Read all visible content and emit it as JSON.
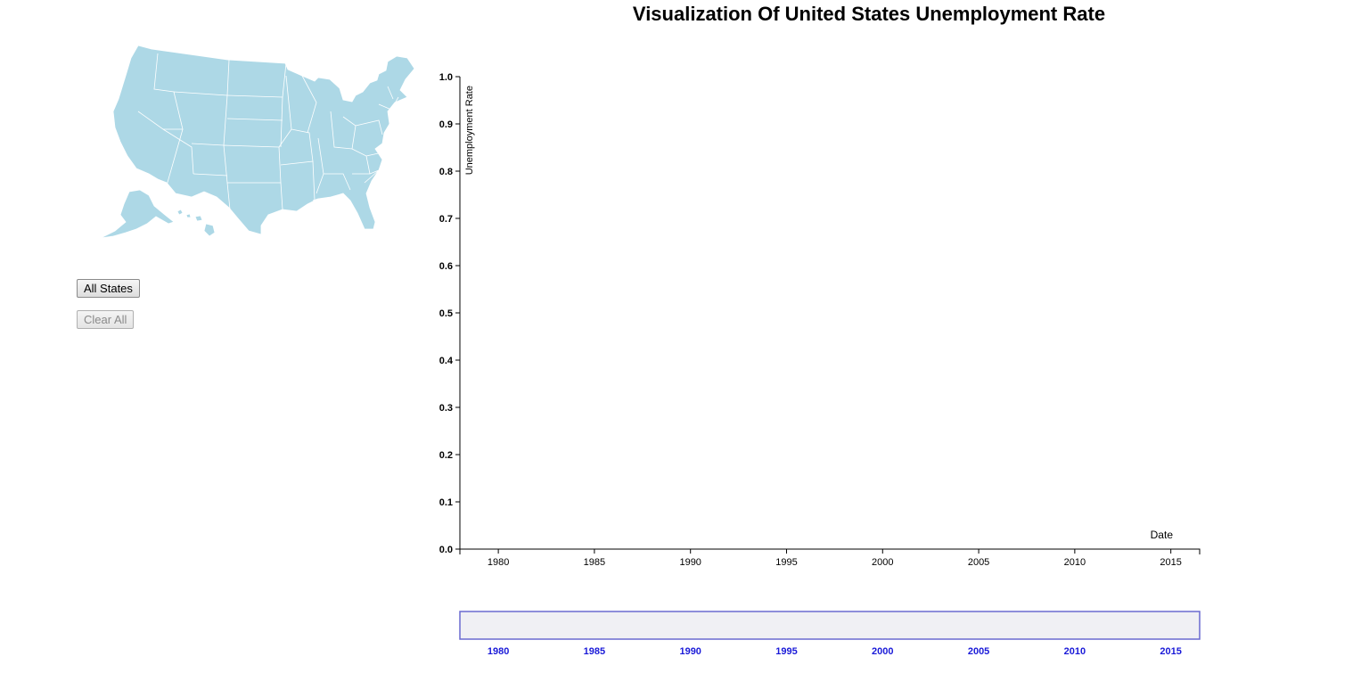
{
  "title": "Visualization Of United States Unemployment Rate",
  "buttons": {
    "all_states": "All States",
    "clear_all": "Clear All"
  },
  "map": {
    "fill_color": "#add8e6",
    "border_color": "#ffffff"
  },
  "chart_data": {
    "type": "line",
    "xlabel": "Date",
    "ylabel": "Unemployment Rate",
    "ylim": [
      0,
      1
    ],
    "xlim": [
      1978,
      2016.5
    ],
    "y_ticks": [
      "0.0",
      "0.1",
      "0.2",
      "0.3",
      "0.4",
      "0.5",
      "0.6",
      "0.7",
      "0.8",
      "0.9",
      "1.0"
    ],
    "x_ticks": [
      "1980",
      "1985",
      "1990",
      "1995",
      "2000",
      "2005",
      "2010",
      "2015"
    ],
    "series": [],
    "grid": false
  },
  "context": {
    "x_ticks": [
      "1980",
      "1985",
      "1990",
      "1995",
      "2000",
      "2005",
      "2010",
      "2015"
    ],
    "brush_color": "#6a6ad0",
    "fill_color": "#f0f0f4",
    "tick_color": "#1a1ad8"
  }
}
